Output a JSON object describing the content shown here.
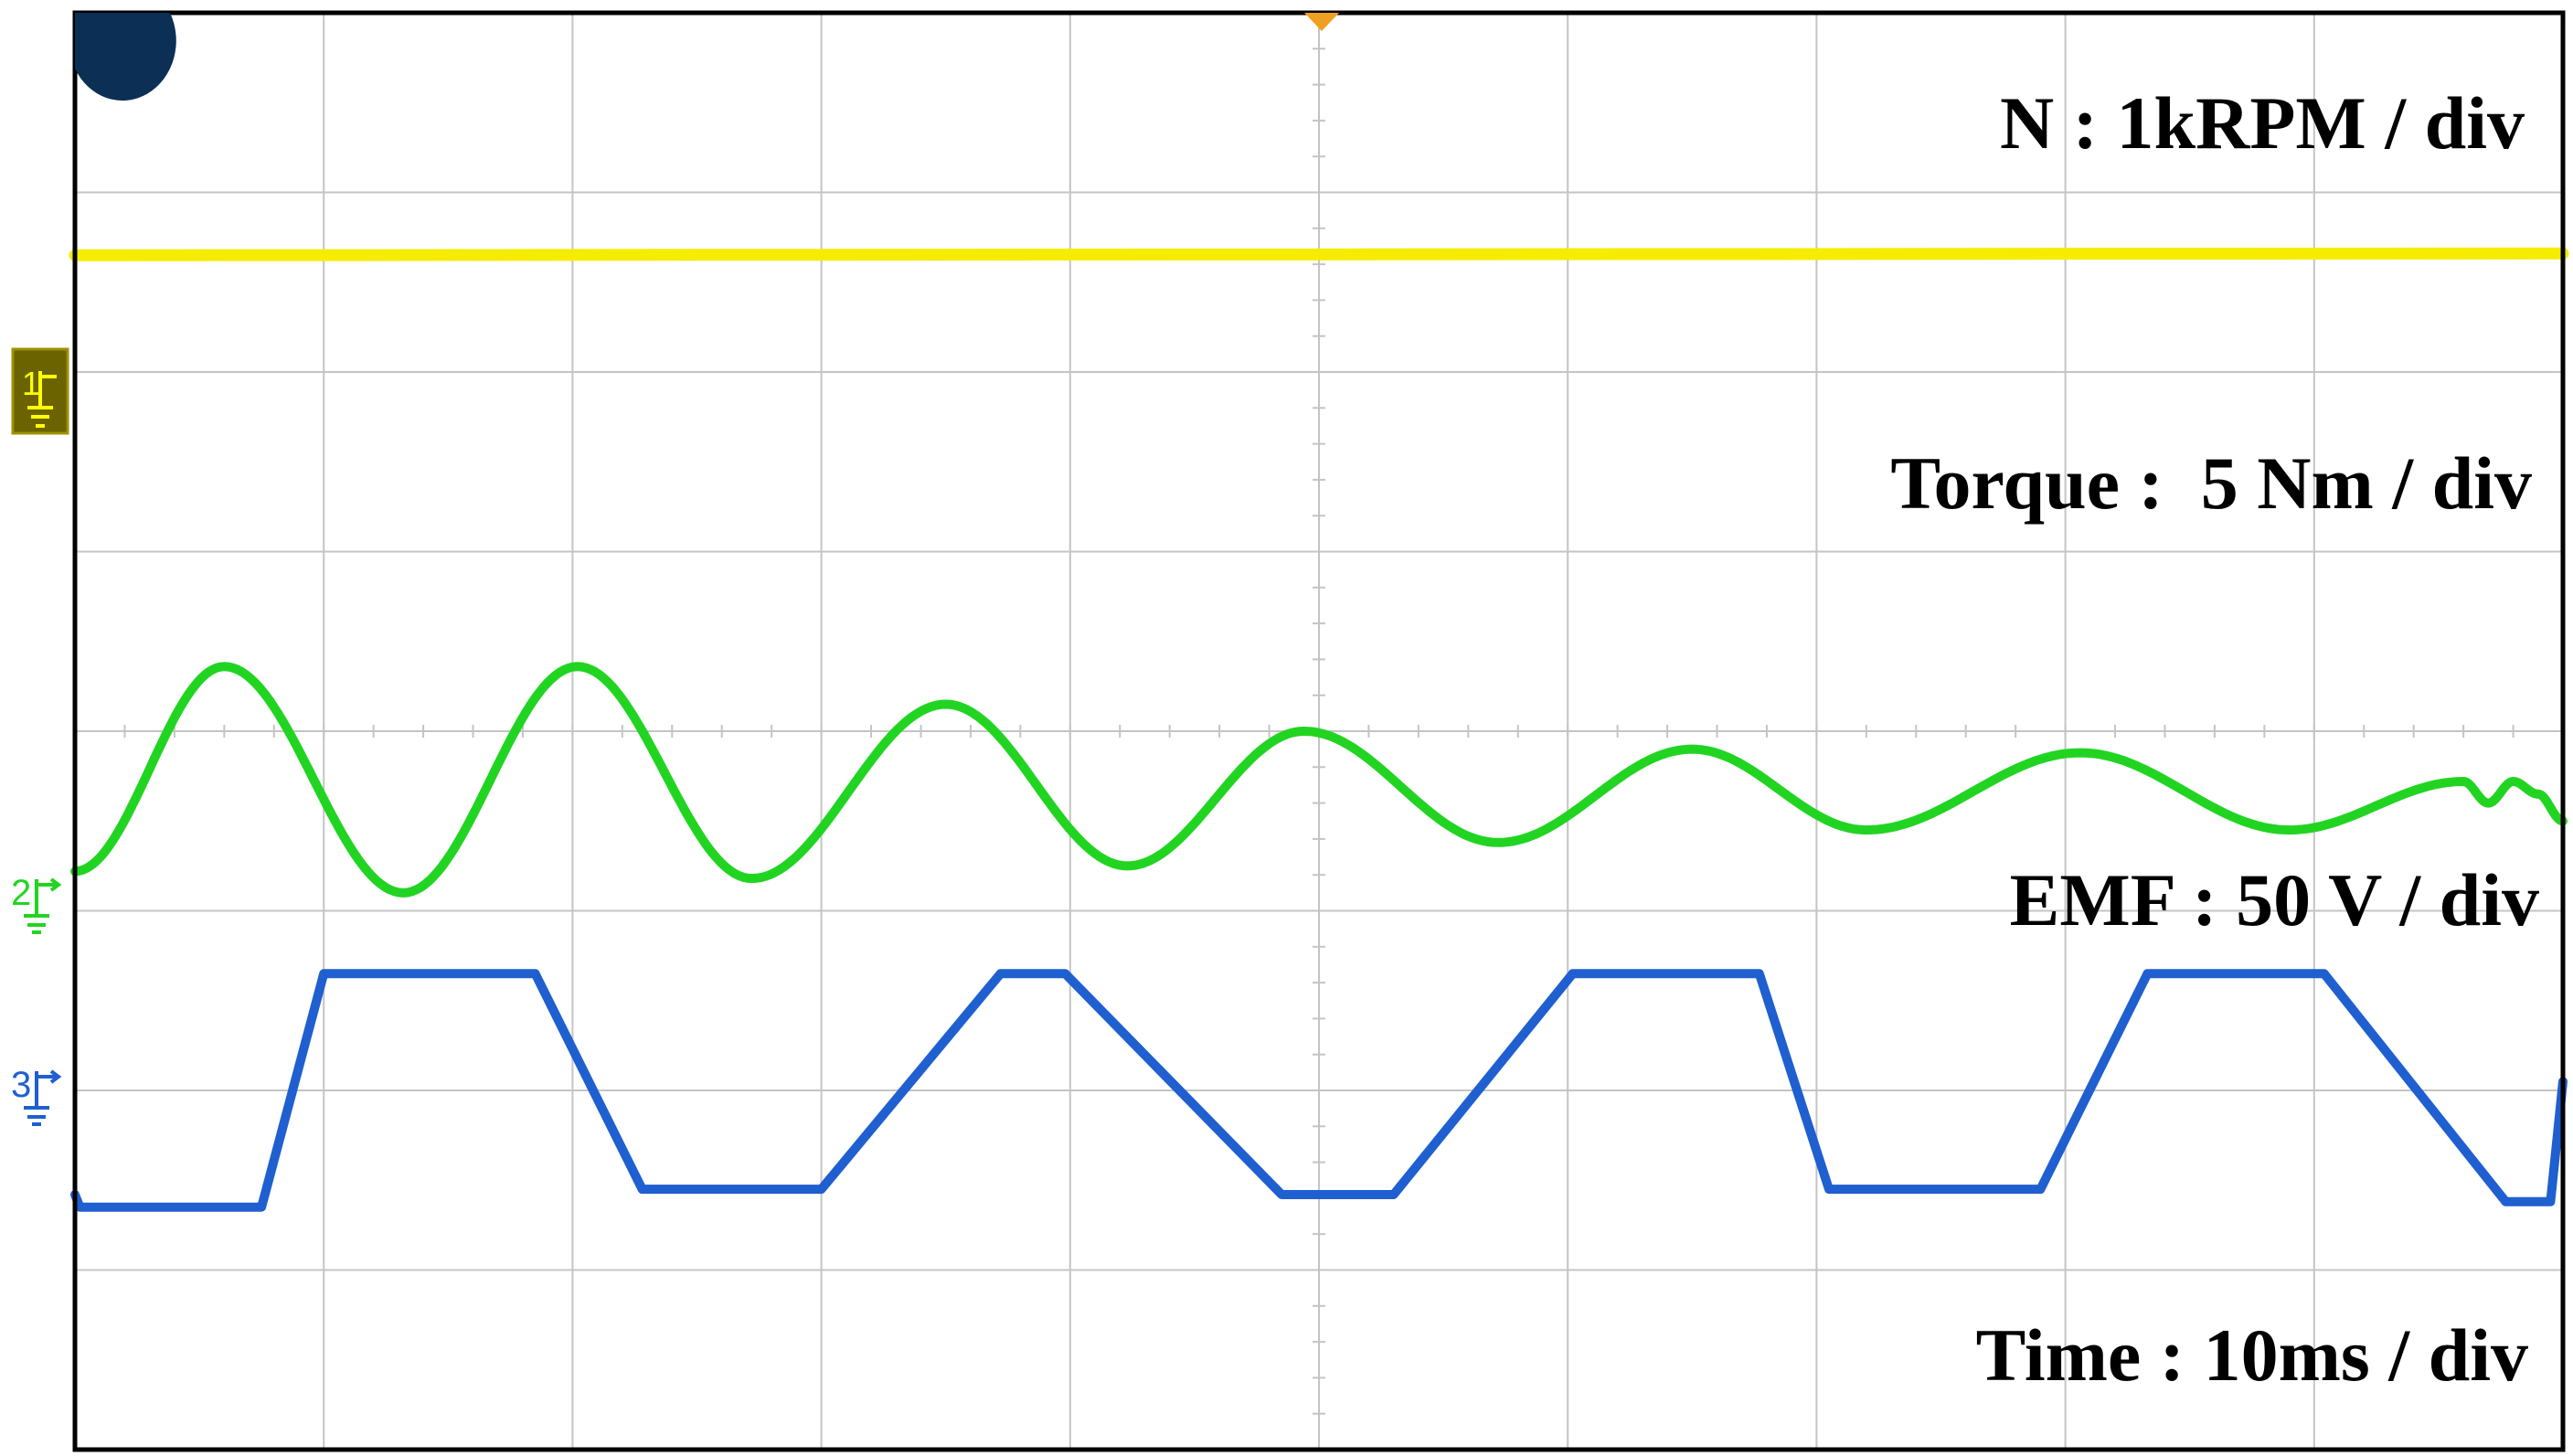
{
  "colors": {
    "speed": "#f5ec00",
    "torque": "#22d422",
    "emf": "#1f5fd0",
    "grid": "#c4c4c4",
    "frame": "#000000",
    "ref_marker1_bg": "#6b6300",
    "ref_marker1_fg": "#ffff00",
    "trigger_marker": "#f0a020",
    "corner_dot": "#0b2f55"
  },
  "icons": {
    "ch1_ground": "ground-reference-icon",
    "ch2_ground": "ground-reference-icon",
    "ch3_ground": "ground-reference-icon",
    "trigger": "trigger-position-icon",
    "corner": "corner-dot-icon"
  },
  "scope": {
    "markers": {
      "ch1": "1",
      "ch2": "2",
      "ch3": "3"
    }
  },
  "chart_data": {
    "type": "line",
    "grid": true,
    "grid_divisions": {
      "x": 10,
      "y": 8
    },
    "x_unit": "div",
    "x_range": [
      0,
      10
    ],
    "y_range": [
      0,
      8
    ],
    "annotations": {
      "speed_scale": "N : 1kRPM / div",
      "torque_scale": "Torque :  5 Nm / div",
      "emf_scale": "EMF : 50 V / div",
      "time_scale": "Time : 10ms / div"
    },
    "series": [
      {
        "channel": "1",
        "color": "#f5ec00",
        "trace": "flat",
        "x": [
          0,
          10
        ],
        "y": [
          6.65,
          6.66
        ]
      },
      {
        "channel": "3",
        "color": "#22d422",
        "trace": "damped-sine",
        "x": [
          0.0,
          0.6,
          1.32,
          2.02,
          2.72,
          3.5,
          4.23,
          4.94,
          5.72,
          6.5,
          7.2,
          8.06,
          8.9,
          9.6,
          9.7,
          9.8,
          9.9,
          10.0
        ],
        "y": [
          3.22,
          4.36,
          3.1,
          4.36,
          3.18,
          4.15,
          3.25,
          4.0,
          3.38,
          3.9,
          3.45,
          3.88,
          3.45,
          3.72,
          3.6,
          3.72,
          3.65,
          3.5
        ]
      },
      {
        "channel": "2",
        "color": "#1f5fd0",
        "trace": "trapezoid",
        "x": [
          0.0,
          0.02,
          0.75,
          1.0,
          1.85,
          2.28,
          3.0,
          3.72,
          3.98,
          4.85,
          5.3,
          6.02,
          6.77,
          7.05,
          7.9,
          8.33,
          9.04,
          9.77,
          9.95,
          10.0
        ],
        "y": [
          1.42,
          1.35,
          1.35,
          2.65,
          2.65,
          1.45,
          1.45,
          2.65,
          2.65,
          1.42,
          1.42,
          2.65,
          2.65,
          1.45,
          1.45,
          2.65,
          2.65,
          1.38,
          1.38,
          2.05
        ]
      }
    ]
  }
}
